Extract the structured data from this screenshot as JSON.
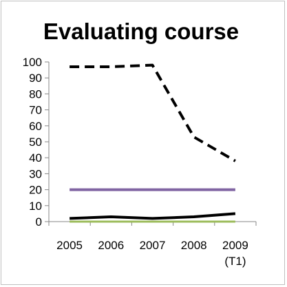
{
  "chart_data": {
    "type": "line",
    "title": "Evaluating course",
    "xlabel": "",
    "ylabel": "",
    "categories": [
      {
        "line1": "2005",
        "line2": ""
      },
      {
        "line1": "2006",
        "line2": ""
      },
      {
        "line1": "2007",
        "line2": ""
      },
      {
        "line1": "2008",
        "line2": ""
      },
      {
        "line1": "2009",
        "line2": "(T1)"
      }
    ],
    "yticks": [
      "0",
      "10",
      "20",
      "30",
      "40",
      "50",
      "60",
      "70",
      "80",
      "90",
      "100"
    ],
    "ylim": [
      0,
      100
    ],
    "grid": false,
    "legend": "none",
    "series": [
      {
        "values": [
          97,
          97,
          98,
          53,
          38
        ],
        "color": "#000000",
        "style": "dashed"
      },
      {
        "values": [
          20,
          20,
          20,
          20,
          20
        ],
        "color": "#8064a2",
        "style": "solid"
      },
      {
        "values": [
          2,
          3,
          2,
          3,
          5
        ],
        "color": "#000000",
        "style": "solid"
      },
      {
        "values": [
          0,
          0,
          0,
          0,
          0
        ],
        "color": "#9bbb59",
        "style": "solid"
      }
    ]
  }
}
